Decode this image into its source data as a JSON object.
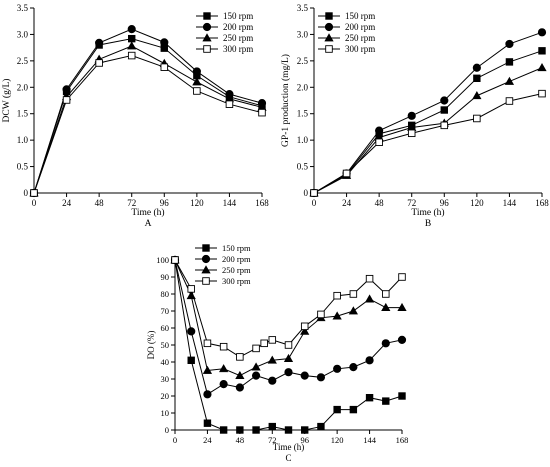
{
  "panels": [
    {
      "id": "A",
      "panel_label": "A",
      "xlabel": "Time (h)",
      "ylabel": "DCW (g/L)"
    },
    {
      "id": "B",
      "panel_label": "B",
      "xlabel": "Time (h)",
      "ylabel": "GP-1 production (mg/L)"
    },
    {
      "id": "C",
      "panel_label": "C",
      "xlabel": "Time (h)",
      "ylabel": "DO (%)"
    }
  ],
  "chart_data": [
    {
      "type": "line",
      "panel": "A",
      "xlabel": "Time (h)",
      "ylabel": "DCW (g/L)",
      "xlim": [
        0,
        168
      ],
      "ylim": [
        0,
        3.5
      ],
      "xticks": [
        0,
        24,
        48,
        72,
        96,
        120,
        144,
        168
      ],
      "yticks": [
        0.0,
        0.5,
        1.0,
        1.5,
        2.0,
        2.5,
        3.0,
        3.5
      ],
      "ytick_labels": [
        "0",
        "0.5",
        "1.0",
        "1.5",
        "2.0",
        "2.5",
        "3.0",
        "3.5"
      ],
      "grid": false,
      "legend_position": "top-right",
      "x": [
        0,
        24,
        48,
        72,
        96,
        120,
        144,
        168
      ],
      "series": [
        {
          "name": "150 rpm",
          "marker": "square-filled",
          "values": [
            0,
            1.92,
            2.8,
            2.92,
            2.74,
            2.22,
            1.82,
            1.65
          ]
        },
        {
          "name": "200 rpm",
          "marker": "circle-filled",
          "values": [
            0,
            1.96,
            2.84,
            3.1,
            2.85,
            2.3,
            1.87,
            1.7
          ]
        },
        {
          "name": "250 rpm",
          "marker": "triangle-filled",
          "values": [
            0,
            1.82,
            2.53,
            2.78,
            2.45,
            2.1,
            1.78,
            1.62
          ]
        },
        {
          "name": "300 rpm",
          "marker": "square-open",
          "values": [
            0,
            1.76,
            2.46,
            2.6,
            2.38,
            1.93,
            1.68,
            1.52
          ]
        }
      ]
    },
    {
      "type": "line",
      "panel": "B",
      "xlabel": "Time (h)",
      "ylabel": "GP-1 production (mg/L)",
      "xlim": [
        0,
        168
      ],
      "ylim": [
        0,
        3.5
      ],
      "xticks": [
        0,
        24,
        48,
        72,
        96,
        120,
        144,
        168
      ],
      "yticks": [
        0.0,
        0.5,
        1.0,
        1.5,
        2.0,
        2.5,
        3.0,
        3.5
      ],
      "ytick_labels": [
        "0",
        "0.5",
        "1.0",
        "1.5",
        "2.0",
        "2.5",
        "3.0",
        "3.5"
      ],
      "grid": false,
      "legend_position": "top-left",
      "x": [
        0,
        24,
        48,
        72,
        96,
        120,
        144,
        168
      ],
      "series": [
        {
          "name": "150 rpm",
          "marker": "square-filled",
          "values": [
            0,
            0.35,
            1.12,
            1.28,
            1.57,
            2.17,
            2.48,
            2.69
          ]
        },
        {
          "name": "200 rpm",
          "marker": "circle-filled",
          "values": [
            0,
            0.37,
            1.18,
            1.46,
            1.75,
            2.37,
            2.82,
            3.04
          ]
        },
        {
          "name": "250 rpm",
          "marker": "triangle-filled",
          "values": [
            0,
            0.33,
            1.05,
            1.24,
            1.32,
            1.84,
            2.11,
            2.37
          ]
        },
        {
          "name": "300 rpm",
          "marker": "square-open",
          "values": [
            0,
            0.37,
            0.96,
            1.13,
            1.28,
            1.41,
            1.74,
            1.88
          ]
        }
      ]
    },
    {
      "type": "line",
      "panel": "C",
      "xlabel": "Time (h)",
      "ylabel": "DO (%)",
      "xlim": [
        0,
        168
      ],
      "ylim": [
        0,
        100
      ],
      "xticks": [
        0,
        24,
        48,
        72,
        96,
        120,
        144,
        168
      ],
      "yticks": [
        0,
        10,
        20,
        30,
        40,
        50,
        60,
        70,
        80,
        90,
        100
      ],
      "ytick_labels": [
        "0",
        "10",
        "20",
        "30",
        "40",
        "50",
        "60",
        "70",
        "80",
        "90",
        "100"
      ],
      "grid": false,
      "legend_position": "top-left",
      "series": [
        {
          "name": "150 rpm",
          "marker": "square-filled",
          "x": [
            0,
            12,
            24,
            36,
            48,
            60,
            72,
            84,
            96,
            108,
            120,
            132,
            144,
            156,
            168
          ],
          "values": [
            100,
            41,
            4,
            0,
            0,
            0,
            2,
            0,
            0,
            2,
            12,
            12,
            19,
            17,
            20
          ]
        },
        {
          "name": "200 rpm",
          "marker": "circle-filled",
          "x": [
            0,
            12,
            24,
            36,
            48,
            60,
            72,
            84,
            96,
            108,
            120,
            132,
            144,
            156,
            168
          ],
          "values": [
            100,
            58,
            21,
            27,
            25,
            32,
            29,
            34,
            32,
            31,
            36,
            37,
            41,
            51,
            53
          ]
        },
        {
          "name": "250 rpm",
          "marker": "triangle-filled",
          "x": [
            0,
            12,
            24,
            36,
            48,
            60,
            72,
            84,
            96,
            108,
            120,
            132,
            144,
            156,
            168
          ],
          "values": [
            100,
            79,
            35,
            36,
            32,
            37,
            41,
            42,
            58,
            66,
            67,
            70,
            77,
            72,
            72
          ]
        },
        {
          "name": "300 rpm",
          "marker": "square-open",
          "x": [
            0,
            12,
            24,
            36,
            48,
            60,
            66,
            72,
            84,
            96,
            108,
            120,
            132,
            144,
            156,
            168
          ],
          "values": [
            100,
            83,
            51,
            49,
            43,
            48,
            51,
            53,
            50,
            61,
            68,
            79,
            80,
            89,
            80,
            90
          ]
        }
      ]
    }
  ]
}
